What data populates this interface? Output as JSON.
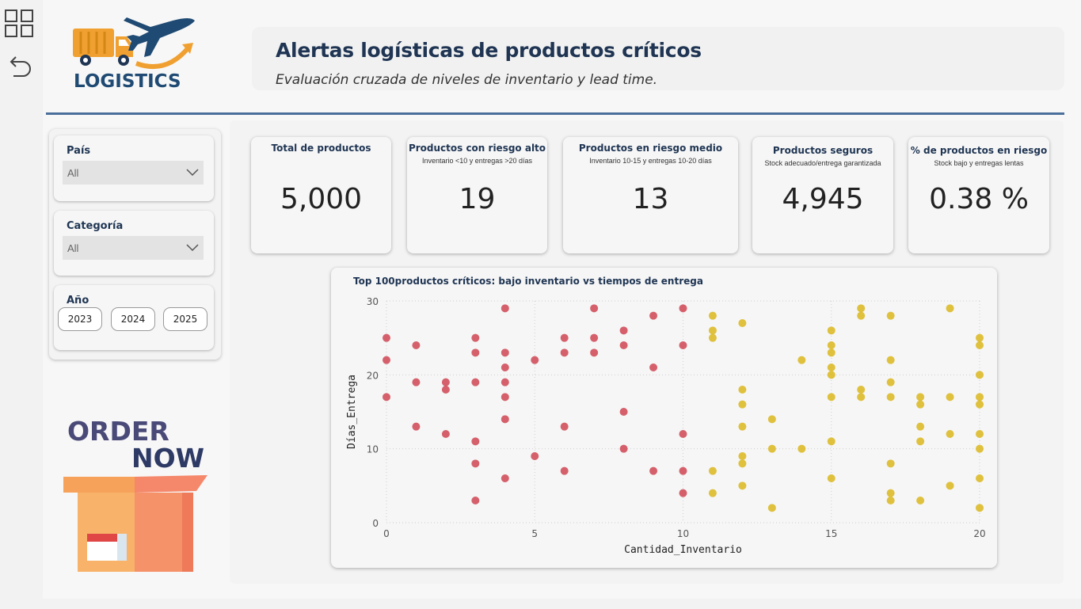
{
  "header": {
    "title": "Alertas logísticas de productos críticos",
    "subtitle": "Evaluación cruzada de niveles de inventario y lead time."
  },
  "logo": {
    "text": "LOGISTICS"
  },
  "promo": {
    "line1": "ORDER",
    "line2": "NOW"
  },
  "rail": {
    "icons": [
      "grid-icon",
      "undo-icon"
    ]
  },
  "filters": {
    "pais": {
      "label": "País",
      "value": "All"
    },
    "categoria": {
      "label": "Categoría",
      "value": "All"
    },
    "anio": {
      "label": "Año",
      "options": [
        "2023",
        "2024",
        "2025"
      ]
    }
  },
  "kpis": [
    {
      "title": "Total de productos",
      "subtitle": "",
      "value": "5,000"
    },
    {
      "title": "Productos con riesgo alto",
      "subtitle": "Inventario <10 y entregas >20 días",
      "value": "19"
    },
    {
      "title": "Productos en riesgo medio",
      "subtitle": "Inventario 10-15 y entregas 10-20 días",
      "value": "13"
    },
    {
      "title": "Productos seguros",
      "subtitle": "Stock adecuado/entrega garantizada",
      "value": "4,945"
    },
    {
      "title": "% de productos en riesgo",
      "subtitle": "Stock bajo y entregas lentas",
      "value": "0.38 %"
    }
  ],
  "colors": {
    "red": "#d1525e",
    "yellow": "#dcbc2e",
    "navy": "#1f3553",
    "orange": "#f0a030"
  },
  "chart_data": {
    "type": "scatter",
    "title": "Top 100productos críticos: bajo inventario vs tiempos de entrega",
    "xlabel": "Cantidad_Inventario",
    "ylabel": "Días_Entrega",
    "xlim": [
      0,
      20
    ],
    "ylim": [
      0,
      30
    ],
    "xticks": [
      0,
      5,
      10,
      15,
      20
    ],
    "yticks": [
      0,
      10,
      20,
      30
    ],
    "grid": true,
    "series": [
      {
        "color": "#d1525e",
        "points": [
          [
            0,
            25
          ],
          [
            0,
            22
          ],
          [
            0,
            17
          ],
          [
            1,
            24
          ],
          [
            1,
            19
          ],
          [
            1,
            13
          ],
          [
            2,
            19
          ],
          [
            2,
            18
          ],
          [
            2,
            12
          ],
          [
            3,
            25
          ],
          [
            3,
            23
          ],
          [
            3,
            19
          ],
          [
            3,
            11
          ],
          [
            3,
            8
          ],
          [
            3,
            3
          ],
          [
            4,
            29
          ],
          [
            4,
            23
          ],
          [
            4,
            21
          ],
          [
            4,
            19
          ],
          [
            4,
            17
          ],
          [
            4,
            14
          ],
          [
            4,
            6
          ],
          [
            5,
            22
          ],
          [
            5,
            9
          ],
          [
            6,
            25
          ],
          [
            6,
            23
          ],
          [
            6,
            13
          ],
          [
            6,
            7
          ],
          [
            7,
            29
          ],
          [
            7,
            25
          ],
          [
            7,
            23
          ],
          [
            8,
            26
          ],
          [
            8,
            24
          ],
          [
            8,
            15
          ],
          [
            8,
            10
          ],
          [
            9,
            28
          ],
          [
            9,
            21
          ],
          [
            9,
            7
          ],
          [
            10,
            29
          ],
          [
            10,
            24
          ],
          [
            10,
            12
          ],
          [
            10,
            7
          ],
          [
            10,
            4
          ]
        ]
      },
      {
        "color": "#dcbc2e",
        "points": [
          [
            11,
            28
          ],
          [
            11,
            26
          ],
          [
            11,
            25
          ],
          [
            11,
            7
          ],
          [
            11,
            4
          ],
          [
            12,
            27
          ],
          [
            12,
            18
          ],
          [
            12,
            16
          ],
          [
            12,
            13
          ],
          [
            12,
            9
          ],
          [
            12,
            8
          ],
          [
            12,
            5
          ],
          [
            13,
            14
          ],
          [
            13,
            10
          ],
          [
            13,
            2
          ],
          [
            14,
            22
          ],
          [
            14,
            10
          ],
          [
            15,
            26
          ],
          [
            15,
            24
          ],
          [
            15,
            23
          ],
          [
            15,
            21
          ],
          [
            15,
            20
          ],
          [
            15,
            17
          ],
          [
            15,
            11
          ],
          [
            15,
            6
          ],
          [
            16,
            29
          ],
          [
            16,
            28
          ],
          [
            16,
            18
          ],
          [
            16,
            17
          ],
          [
            17,
            28
          ],
          [
            17,
            22
          ],
          [
            17,
            19
          ],
          [
            17,
            17
          ],
          [
            17,
            8
          ],
          [
            17,
            4
          ],
          [
            17,
            3
          ],
          [
            18,
            17
          ],
          [
            18,
            16
          ],
          [
            18,
            13
          ],
          [
            18,
            11
          ],
          [
            18,
            3
          ],
          [
            19,
            29
          ],
          [
            19,
            17
          ],
          [
            19,
            12
          ],
          [
            19,
            5
          ],
          [
            20,
            25
          ],
          [
            20,
            24
          ],
          [
            20,
            20
          ],
          [
            20,
            17
          ],
          [
            20,
            16
          ],
          [
            20,
            12
          ],
          [
            20,
            10
          ],
          [
            20,
            6
          ],
          [
            20,
            2
          ]
        ]
      }
    ]
  }
}
